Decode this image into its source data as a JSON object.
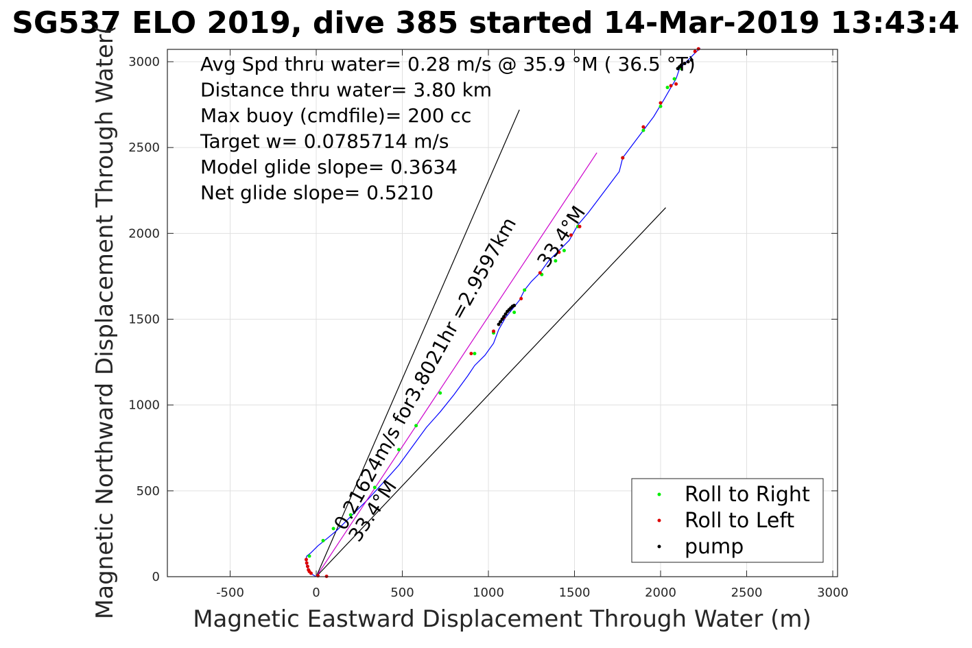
{
  "chart_data": {
    "type": "line",
    "title": "SG537 ELO 2019, dive 385 started 14-Mar-2019 13:43:4",
    "xlabel": "Magnetic Eastward Displacement Through Water (m)",
    "ylabel": "Magnetic Northward Displacement Through Water(",
    "xlim": [
      -850,
      3050
    ],
    "ylim": [
      0,
      3080
    ],
    "xticks": [
      -500,
      0,
      500,
      1000,
      1500,
      2000,
      2500,
      3000
    ],
    "xtick_labels": [
      "-500",
      "0",
      "500",
      "1000",
      "1500",
      "2000",
      "2500",
      "3000"
    ],
    "yticks": [
      0,
      500,
      1000,
      1500,
      2000,
      2500,
      3000
    ],
    "ytick_labels": [
      "0",
      "500",
      "1000",
      "1500",
      "2000",
      "2500",
      "3000"
    ],
    "grid": true,
    "legend_position": "bottom-right",
    "annotations": [
      "Avg Spd thru water=  0.28 m/s @  35.9 °M ( 36.5 °T)",
      "Distance thru water=  3.80 km",
      "Max buoy (cmdfile)= 200 cc",
      "Target w= 0.0785714 m/s",
      "Model glide slope= 0.3634",
      "Net glide slope= 0.5210"
    ],
    "line_labels": {
      "speed_line": "0.21624m/s for3.8021hr =2.9597km",
      "heading_upper": "33.4°M",
      "heading_lower": "33.4°M"
    },
    "series": [
      {
        "name": "",
        "color": "#0000ff",
        "x": [
          0,
          -35,
          -55,
          -60,
          -55,
          -30,
          10,
          60,
          120,
          200,
          300,
          400,
          480,
          560,
          640,
          720,
          800,
          880,
          920,
          980,
          1030,
          1060,
          1100,
          1140,
          1180,
          1210,
          1250,
          1300,
          1350,
          1410,
          1470,
          1520,
          1580,
          1640,
          1700,
          1760,
          1780,
          1840,
          1900,
          1960,
          2020,
          2060,
          2090,
          2110,
          2150,
          2200,
          2230
        ],
        "y": [
          0,
          20,
          60,
          100,
          120,
          140,
          180,
          220,
          270,
          350,
          450,
          560,
          650,
          760,
          870,
          960,
          1060,
          1170,
          1230,
          1290,
          1360,
          1440,
          1510,
          1560,
          1610,
          1670,
          1720,
          1770,
          1840,
          1900,
          1960,
          2050,
          2120,
          2200,
          2280,
          2360,
          2440,
          2520,
          2600,
          2680,
          2780,
          2850,
          2900,
          2960,
          3000,
          3050,
          3080
        ]
      },
      {
        "name": "",
        "color": "#cc00cc",
        "x": [
          0,
          1630
        ],
        "y": [
          0,
          2470
        ]
      }
    ],
    "reference_lines": [
      {
        "color": "#000000",
        "x": [
          0,
          1180
        ],
        "y": [
          0,
          2720
        ]
      },
      {
        "color": "#000000",
        "x": [
          0,
          2030
        ],
        "y": [
          0,
          2150
        ]
      }
    ],
    "markers": [
      {
        "name": "Roll to Right",
        "color": "#00ee00",
        "x": [
          -40,
          40,
          100,
          200,
          340,
          480,
          580,
          720,
          920,
          1030,
          1150,
          1210,
          1310,
          1390,
          1440,
          1520,
          1780,
          1900,
          2000,
          2040,
          2080,
          2120
        ],
        "y": [
          120,
          210,
          280,
          360,
          520,
          740,
          880,
          1070,
          1300,
          1420,
          1540,
          1670,
          1760,
          1840,
          1900,
          2040,
          2440,
          2600,
          2740,
          2850,
          2900,
          2960
        ]
      },
      {
        "name": "Roll to Left",
        "color": "#dd0000",
        "x": [
          -58,
          -55,
          -50,
          -45,
          -40,
          -30,
          10,
          60,
          900,
          1030,
          1090,
          1190,
          1300,
          1410,
          1480,
          1530,
          1780,
          1900,
          2000,
          2060,
          2090,
          2200,
          2220
        ],
        "y": [
          100,
          80,
          60,
          40,
          30,
          20,
          5,
          2,
          1300,
          1430,
          1510,
          1620,
          1770,
          1890,
          1990,
          2040,
          2440,
          2620,
          2760,
          2860,
          2870,
          3060,
          3075
        ]
      },
      {
        "name": "pump",
        "color": "#000000",
        "x": [
          1060,
          1070,
          1080,
          1090,
          1100,
          1110,
          1120,
          1130,
          1140,
          1150,
          2100,
          2110,
          2120,
          2140,
          2160,
          2180
        ],
        "y": [
          1470,
          1485,
          1500,
          1515,
          1530,
          1545,
          1555,
          1565,
          1575,
          1580,
          2960,
          2970,
          2980,
          2990,
          3000,
          3010
        ]
      }
    ]
  }
}
